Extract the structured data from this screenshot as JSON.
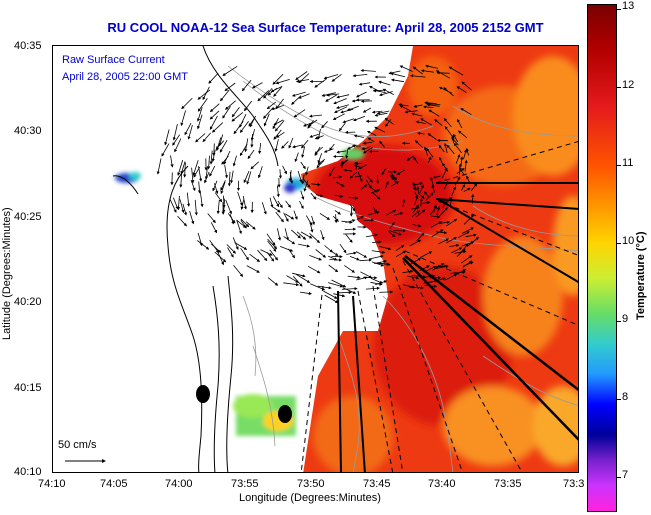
{
  "title": "RU COOL  NOAA-12  Sea Surface Temperature:  April 28, 2005 2152 GMT",
  "legend": {
    "line1": "Raw Surface Current",
    "line2": "April 28, 2005 22:00 GMT",
    "scale_label": "50 cm/s"
  },
  "axes": {
    "x_label": "Longitude (Degrees:Minutes)",
    "y_label": "Latitude (Degrees:Minutes)",
    "x_ticks": [
      "74:10",
      "74:05",
      "74:00",
      "73:55",
      "73:50",
      "73:45",
      "73:40",
      "73:35",
      "73:3"
    ],
    "y_ticks": [
      "40:35",
      "40:30",
      "40:25",
      "40:20",
      "40:15",
      "40:10"
    ]
  },
  "colorbar": {
    "title": "Temperature (°C)",
    "ticks": [
      "13",
      "12",
      "11",
      "10",
      "9",
      "8",
      "7"
    ],
    "min": 6.5,
    "max": 13
  },
  "colors": {
    "title_blue": "#0000cc",
    "land": "#ffffff",
    "warm_sst": "#e8280f",
    "cool_sst": "#f7a018"
  }
}
